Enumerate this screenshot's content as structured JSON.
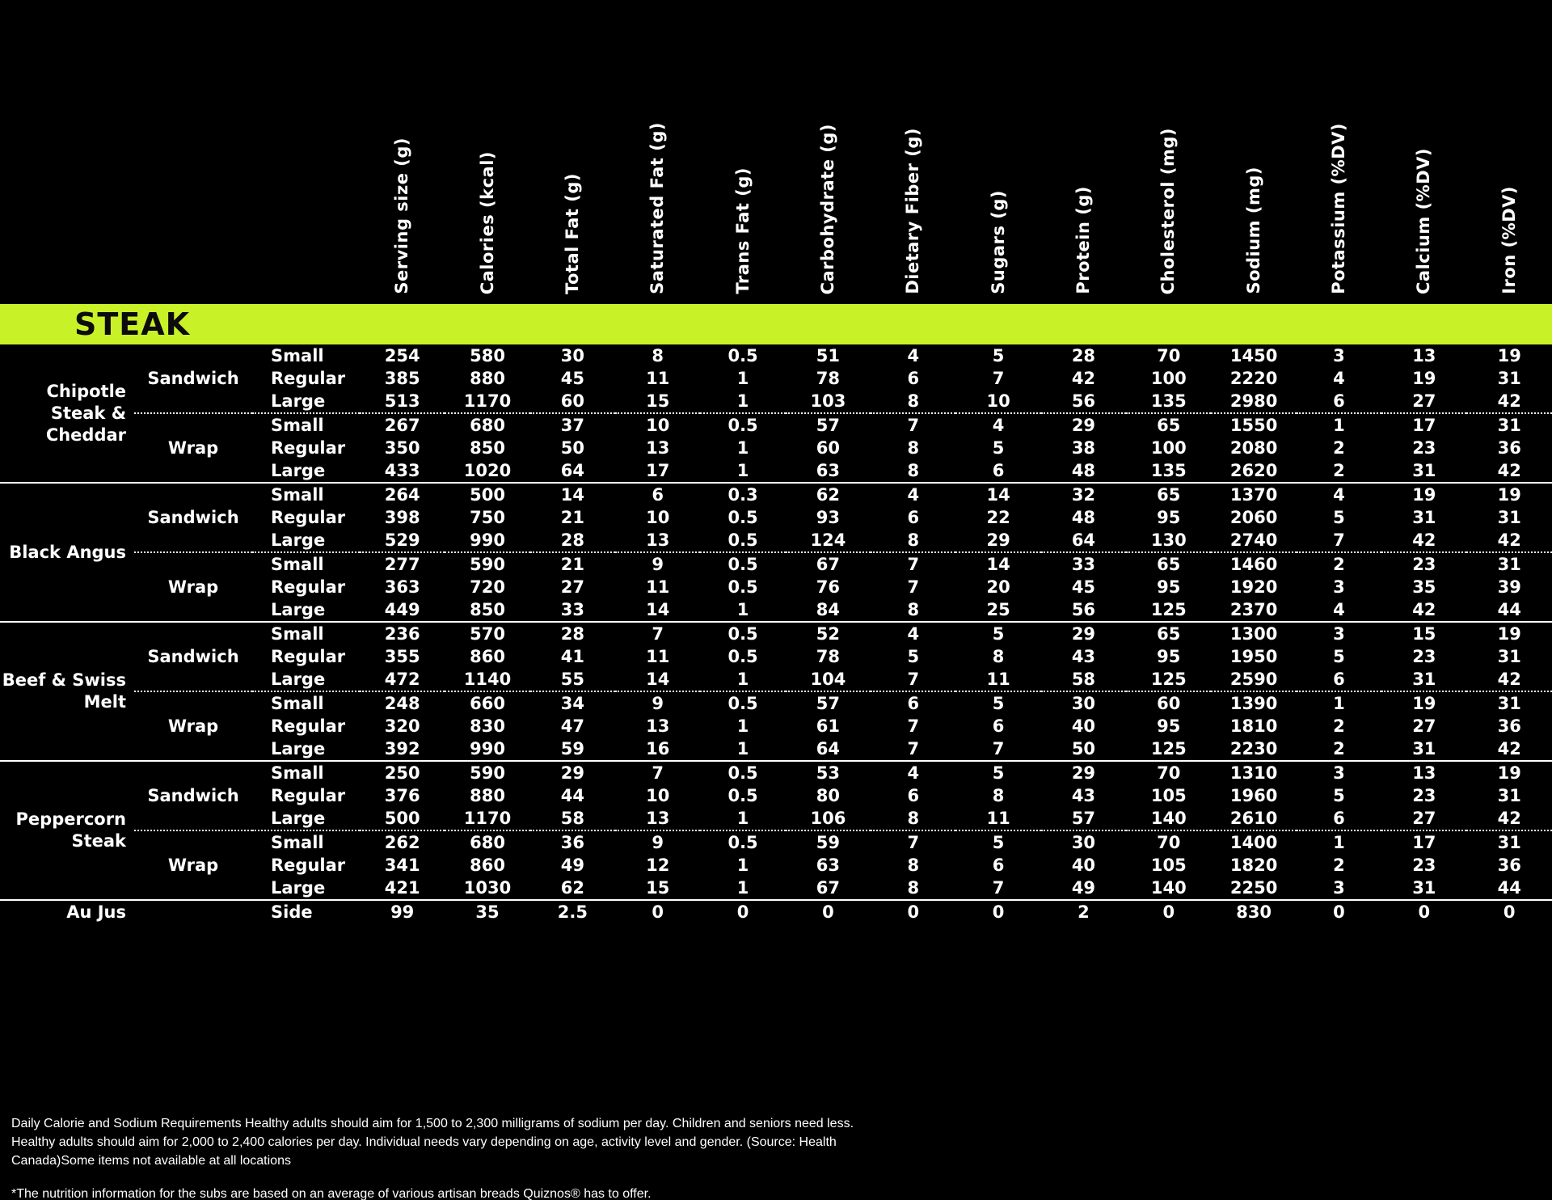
{
  "section": {
    "title": "STEAK",
    "accent_color": "#c9f128",
    "title_color": "#0c0c0c",
    "background_color": "#000000",
    "text_color": "#ffffff"
  },
  "columns": [
    "Serving size (g)",
    "Calories (kcal)",
    "Total Fat (g)",
    "Saturated Fat (g)",
    "Trans Fat (g)",
    "Carbohydrate (g)",
    "Dietary Fiber (g)",
    "Sugars (g)",
    "Protein (g)",
    "Cholesterol (mg)",
    "Sodium (mg)",
    "Potassium (%DV)",
    "Calcium (%DV)",
    "Iron (%DV)"
  ],
  "groups": [
    {
      "name": "Chipotle Steak & Cheddar",
      "subgroups": [
        {
          "format": "Sandwich",
          "rows": [
            {
              "size": "Small",
              "values": [
                "254",
                "580",
                "30",
                "8",
                "0.5",
                "51",
                "4",
                "5",
                "28",
                "70",
                "1450",
                "3",
                "13",
                "19"
              ]
            },
            {
              "size": "Regular",
              "values": [
                "385",
                "880",
                "45",
                "11",
                "1",
                "78",
                "6",
                "7",
                "42",
                "100",
                "2220",
                "4",
                "19",
                "31"
              ]
            },
            {
              "size": "Large",
              "values": [
                "513",
                "1170",
                "60",
                "15",
                "1",
                "103",
                "8",
                "10",
                "56",
                "135",
                "2980",
                "6",
                "27",
                "42"
              ]
            }
          ]
        },
        {
          "format": "Wrap",
          "rows": [
            {
              "size": "Small",
              "values": [
                "267",
                "680",
                "37",
                "10",
                "0.5",
                "57",
                "7",
                "4",
                "29",
                "65",
                "1550",
                "1",
                "17",
                "31"
              ]
            },
            {
              "size": "Regular",
              "values": [
                "350",
                "850",
                "50",
                "13",
                "1",
                "60",
                "8",
                "5",
                "38",
                "100",
                "2080",
                "2",
                "23",
                "36"
              ]
            },
            {
              "size": "Large",
              "values": [
                "433",
                "1020",
                "64",
                "17",
                "1",
                "63",
                "8",
                "6",
                "48",
                "135",
                "2620",
                "2",
                "31",
                "42"
              ]
            }
          ]
        }
      ]
    },
    {
      "name": "Black Angus",
      "subgroups": [
        {
          "format": "Sandwich",
          "rows": [
            {
              "size": "Small",
              "values": [
                "264",
                "500",
                "14",
                "6",
                "0.3",
                "62",
                "4",
                "14",
                "32",
                "65",
                "1370",
                "4",
                "19",
                "19"
              ]
            },
            {
              "size": "Regular",
              "values": [
                "398",
                "750",
                "21",
                "10",
                "0.5",
                "93",
                "6",
                "22",
                "48",
                "95",
                "2060",
                "5",
                "31",
                "31"
              ]
            },
            {
              "size": "Large",
              "values": [
                "529",
                "990",
                "28",
                "13",
                "0.5",
                "124",
                "8",
                "29",
                "64",
                "130",
                "2740",
                "7",
                "42",
                "42"
              ]
            }
          ]
        },
        {
          "format": "Wrap",
          "rows": [
            {
              "size": "Small",
              "values": [
                "277",
                "590",
                "21",
                "9",
                "0.5",
                "67",
                "7",
                "14",
                "33",
                "65",
                "1460",
                "2",
                "23",
                "31"
              ]
            },
            {
              "size": "Regular",
              "values": [
                "363",
                "720",
                "27",
                "11",
                "0.5",
                "76",
                "7",
                "20",
                "45",
                "95",
                "1920",
                "3",
                "35",
                "39"
              ]
            },
            {
              "size": "Large",
              "values": [
                "449",
                "850",
                "33",
                "14",
                "1",
                "84",
                "8",
                "25",
                "56",
                "125",
                "2370",
                "4",
                "42",
                "44"
              ]
            }
          ]
        }
      ]
    },
    {
      "name": "Beef & Swiss Melt",
      "subgroups": [
        {
          "format": "Sandwich",
          "rows": [
            {
              "size": "Small",
              "values": [
                "236",
                "570",
                "28",
                "7",
                "0.5",
                "52",
                "4",
                "5",
                "29",
                "65",
                "1300",
                "3",
                "15",
                "19"
              ]
            },
            {
              "size": "Regular",
              "values": [
                "355",
                "860",
                "41",
                "11",
                "0.5",
                "78",
                "5",
                "8",
                "43",
                "95",
                "1950",
                "5",
                "23",
                "31"
              ]
            },
            {
              "size": "Large",
              "values": [
                "472",
                "1140",
                "55",
                "14",
                "1",
                "104",
                "7",
                "11",
                "58",
                "125",
                "2590",
                "6",
                "31",
                "42"
              ]
            }
          ]
        },
        {
          "format": "Wrap",
          "rows": [
            {
              "size": "Small",
              "values": [
                "248",
                "660",
                "34",
                "9",
                "0.5",
                "57",
                "6",
                "5",
                "30",
                "60",
                "1390",
                "1",
                "19",
                "31"
              ]
            },
            {
              "size": "Regular",
              "values": [
                "320",
                "830",
                "47",
                "13",
                "1",
                "61",
                "7",
                "6",
                "40",
                "95",
                "1810",
                "2",
                "27",
                "36"
              ]
            },
            {
              "size": "Large",
              "values": [
                "392",
                "990",
                "59",
                "16",
                "1",
                "64",
                "7",
                "7",
                "50",
                "125",
                "2230",
                "2",
                "31",
                "42"
              ]
            }
          ]
        }
      ]
    },
    {
      "name": "Peppercorn Steak",
      "subgroups": [
        {
          "format": "Sandwich",
          "rows": [
            {
              "size": "Small",
              "values": [
                "250",
                "590",
                "29",
                "7",
                "0.5",
                "53",
                "4",
                "5",
                "29",
                "70",
                "1310",
                "3",
                "13",
                "19"
              ]
            },
            {
              "size": "Regular",
              "values": [
                "376",
                "880",
                "44",
                "10",
                "0.5",
                "80",
                "6",
                "8",
                "43",
                "105",
                "1960",
                "5",
                "23",
                "31"
              ]
            },
            {
              "size": "Large",
              "values": [
                "500",
                "1170",
                "58",
                "13",
                "1",
                "106",
                "8",
                "11",
                "57",
                "140",
                "2610",
                "6",
                "27",
                "42"
              ]
            }
          ]
        },
        {
          "format": "Wrap",
          "rows": [
            {
              "size": "Small",
              "values": [
                "262",
                "680",
                "36",
                "9",
                "0.5",
                "59",
                "7",
                "5",
                "30",
                "70",
                "1400",
                "1",
                "17",
                "31"
              ]
            },
            {
              "size": "Regular",
              "values": [
                "341",
                "860",
                "49",
                "12",
                "1",
                "63",
                "8",
                "6",
                "40",
                "105",
                "1820",
                "2",
                "23",
                "36"
              ]
            },
            {
              "size": "Large",
              "values": [
                "421",
                "1030",
                "62",
                "15",
                "1",
                "67",
                "8",
                "7",
                "49",
                "140",
                "2250",
                "3",
                "31",
                "44"
              ]
            }
          ]
        }
      ]
    },
    {
      "name": "Au Jus",
      "subgroups": [
        {
          "format": "",
          "rows": [
            {
              "size": "Side",
              "values": [
                "99",
                "35",
                "2.5",
                "0",
                "0",
                "0",
                "0",
                "0",
                "2",
                "0",
                "830",
                "0",
                "0",
                "0"
              ]
            }
          ]
        }
      ]
    }
  ],
  "footnotes": {
    "daily": "Daily Calorie and Sodium Requirements Healthy adults should aim for 1,500 to 2,300 milligrams of sodium per day. Children and seniors need less. Healthy adults should aim for 2,000 to 2,400 calories per day. Individual needs vary depending on age, activity level and gender. (Source: Health Canada)Some items not available at all locations",
    "bread": "*The nutrition information for the subs are based on an average of various artisan breads Quiznos® has to offer."
  }
}
